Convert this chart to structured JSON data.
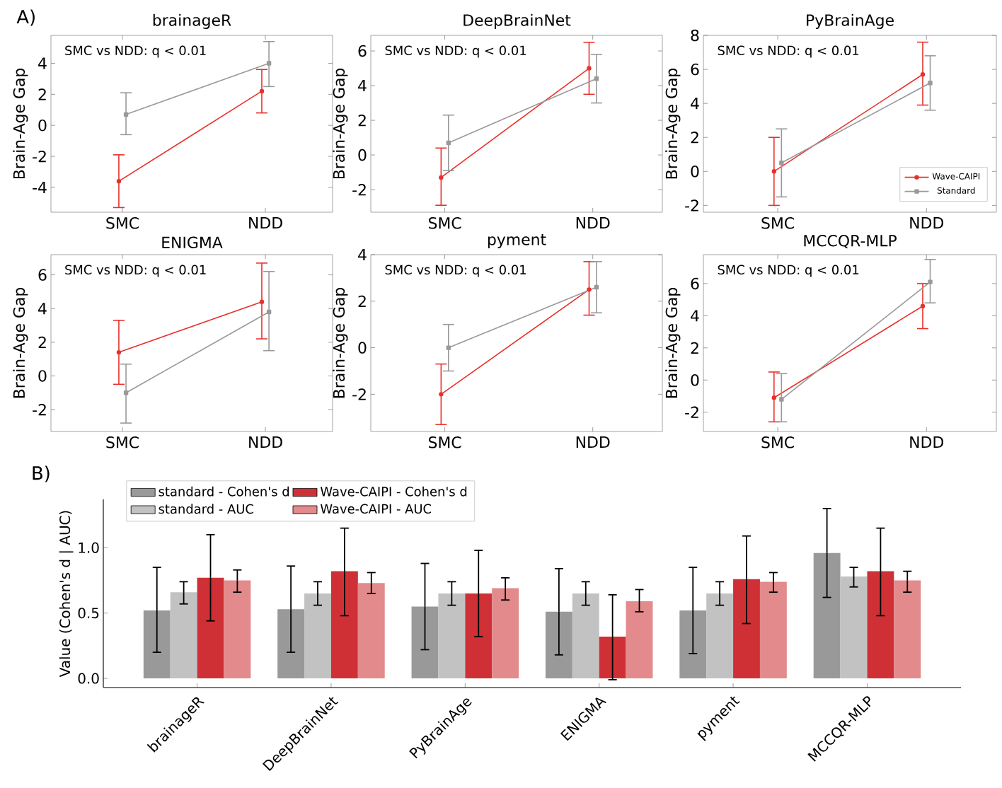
{
  "chart_data": [
    {
      "type": "line",
      "title": "brainageR",
      "ylabel": "Brain-Age Gap",
      "annotations": [
        "A)",
        "SMC vs NDD: q < 0.01"
      ],
      "categories": [
        "SMC",
        "NDD"
      ],
      "ylim": [
        -5.6,
        5.8
      ],
      "yticks": [
        -4,
        -2,
        0,
        2,
        4
      ],
      "series": [
        {
          "color": "#e8312b",
          "marker": "circle",
          "values": [
            -3.6,
            2.2
          ],
          "errors": [
            [
              -5.3,
              -1.9
            ],
            [
              0.8,
              3.6
            ]
          ]
        },
        {
          "color": "#999999",
          "marker": "square",
          "values": [
            0.7,
            4.0
          ],
          "errors": [
            [
              -0.6,
              2.1
            ],
            [
              2.5,
              5.4
            ]
          ]
        }
      ]
    },
    {
      "type": "line",
      "title": "DeepBrainNet",
      "ylabel": "Brain-Age Gap",
      "annotations": [
        "SMC vs NDD: q < 0.01"
      ],
      "categories": [
        "SMC",
        "NDD"
      ],
      "ylim": [
        -3.3,
        6.9
      ],
      "yticks": [
        -2,
        0,
        2,
        4,
        6
      ],
      "series": [
        {
          "color": "#e8312b",
          "marker": "circle",
          "values": [
            -1.3,
            5.0
          ],
          "errors": [
            [
              -2.9,
              0.4
            ],
            [
              3.5,
              6.5
            ]
          ]
        },
        {
          "color": "#999999",
          "marker": "square",
          "values": [
            0.7,
            4.4
          ],
          "errors": [
            [
              -0.9,
              2.3
            ],
            [
              3.0,
              5.8
            ]
          ]
        }
      ]
    },
    {
      "type": "line",
      "title": "PyBrainAge",
      "ylabel": "Brain-Age Gap",
      "annotations": [
        "SMC vs NDD: q < 0.01"
      ],
      "categories": [
        "SMC",
        "NDD"
      ],
      "ylim": [
        -2.4,
        8.0
      ],
      "yticks": [
        -2,
        0,
        2,
        4,
        6,
        8
      ],
      "legend": "bottom right",
      "series": [
        {
          "name": "Wave-CAIPI",
          "color": "#e8312b",
          "marker": "circle",
          "values": [
            0.0,
            5.7
          ],
          "errors": [
            [
              -2.0,
              2.0
            ],
            [
              3.9,
              7.6
            ]
          ]
        },
        {
          "name": "Standard",
          "color": "#999999",
          "marker": "square",
          "values": [
            0.5,
            5.2
          ],
          "errors": [
            [
              -1.5,
              2.5
            ],
            [
              3.6,
              6.8
            ]
          ]
        }
      ]
    },
    {
      "type": "line",
      "title": "ENIGMA",
      "ylabel": "Brain-Age Gap",
      "annotations": [
        "SMC vs NDD: q < 0.01"
      ],
      "categories": [
        "SMC",
        "NDD"
      ],
      "ylim": [
        -3.3,
        7.2
      ],
      "yticks": [
        -2,
        0,
        2,
        4,
        6
      ],
      "series": [
        {
          "color": "#e8312b",
          "marker": "circle",
          "values": [
            1.4,
            4.4
          ],
          "errors": [
            [
              -0.5,
              3.3
            ],
            [
              2.2,
              6.7
            ]
          ]
        },
        {
          "color": "#999999",
          "marker": "square",
          "values": [
            -1.0,
            3.8
          ],
          "errors": [
            [
              -2.8,
              0.7
            ],
            [
              1.5,
              6.2
            ]
          ]
        }
      ]
    },
    {
      "type": "line",
      "title": "pyment",
      "ylabel": "Brain-Age Gap",
      "annotations": [
        "SMC vs NDD: q < 0.01"
      ],
      "categories": [
        "SMC",
        "NDD"
      ],
      "ylim": [
        -3.6,
        4.0
      ],
      "yticks": [
        -2,
        0,
        2,
        4
      ],
      "series": [
        {
          "color": "#e8312b",
          "marker": "circle",
          "values": [
            -2.0,
            2.5
          ],
          "errors": [
            [
              -3.3,
              -0.7
            ],
            [
              1.4,
              3.7
            ]
          ]
        },
        {
          "color": "#999999",
          "marker": "square",
          "values": [
            0.0,
            2.6
          ],
          "errors": [
            [
              -1.0,
              1.0
            ],
            [
              1.5,
              3.7
            ]
          ]
        }
      ]
    },
    {
      "type": "line",
      "title": "MCCQR-MLP",
      "ylabel": "Brain-Age Gap",
      "annotations": [
        "SMC vs NDD: q < 0.01"
      ],
      "categories": [
        "SMC",
        "NDD"
      ],
      "ylim": [
        -3.2,
        7.8
      ],
      "yticks": [
        -2,
        0,
        2,
        4,
        6
      ],
      "series": [
        {
          "color": "#e8312b",
          "marker": "circle",
          "values": [
            -1.1,
            4.6
          ],
          "errors": [
            [
              -2.6,
              0.5
            ],
            [
              3.2,
              6.0
            ]
          ]
        },
        {
          "color": "#999999",
          "marker": "square",
          "values": [
            -1.2,
            6.1
          ],
          "errors": [
            [
              -2.6,
              0.4
            ],
            [
              4.8,
              7.5
            ]
          ]
        }
      ]
    },
    {
      "type": "bar",
      "ylabel": "Value (Cohen's d | AUC)",
      "annotations": [
        "B)"
      ],
      "legend": "top",
      "categories": [
        "brainageR",
        "DeepBrainNet",
        "PyBrainAge",
        "ENIGMA",
        "pyment",
        "MCCQR-MLP"
      ],
      "ylim": [
        -0.07,
        1.37
      ],
      "yticks": [
        {
          "value": 0,
          "label": "0.0"
        },
        {
          "value": 0.5,
          "label": "0.5"
        },
        {
          "value": 1,
          "label": "1.0"
        }
      ],
      "series": [
        {
          "name": "standard - Cohen's d",
          "color": "#999999",
          "values": [
            0.52,
            0.53,
            0.55,
            0.51,
            0.52,
            0.96
          ],
          "errors": [
            [
              0.2,
              0.85
            ],
            [
              0.2,
              0.86
            ],
            [
              0.22,
              0.88
            ],
            [
              0.18,
              0.84
            ],
            [
              0.19,
              0.85
            ],
            [
              0.62,
              1.3
            ]
          ]
        },
        {
          "name": "standard - AUC",
          "color": "#c2c2c2",
          "values": [
            0.66,
            0.65,
            0.65,
            0.65,
            0.65,
            0.78
          ],
          "errors": [
            [
              0.57,
              0.74
            ],
            [
              0.56,
              0.74
            ],
            [
              0.56,
              0.74
            ],
            [
              0.56,
              0.74
            ],
            [
              0.56,
              0.74
            ],
            [
              0.7,
              0.85
            ]
          ]
        },
        {
          "name": "Wave-CAIPI - Cohen's d",
          "color": "#cf3035",
          "values": [
            0.77,
            0.82,
            0.65,
            0.32,
            0.76,
            0.82
          ],
          "errors": [
            [
              0.44,
              1.1
            ],
            [
              0.48,
              1.15
            ],
            [
              0.32,
              0.98
            ],
            [
              -0.01,
              0.64
            ],
            [
              0.42,
              1.09
            ],
            [
              0.48,
              1.15
            ]
          ]
        },
        {
          "name": "Wave-CAIPI - AUC",
          "color": "#e28a8c",
          "values": [
            0.75,
            0.73,
            0.69,
            0.59,
            0.74,
            0.75
          ],
          "errors": [
            [
              0.66,
              0.83
            ],
            [
              0.65,
              0.81
            ],
            [
              0.6,
              0.77
            ],
            [
              0.51,
              0.68
            ],
            [
              0.66,
              0.81
            ],
            [
              0.66,
              0.82
            ]
          ]
        }
      ]
    }
  ]
}
